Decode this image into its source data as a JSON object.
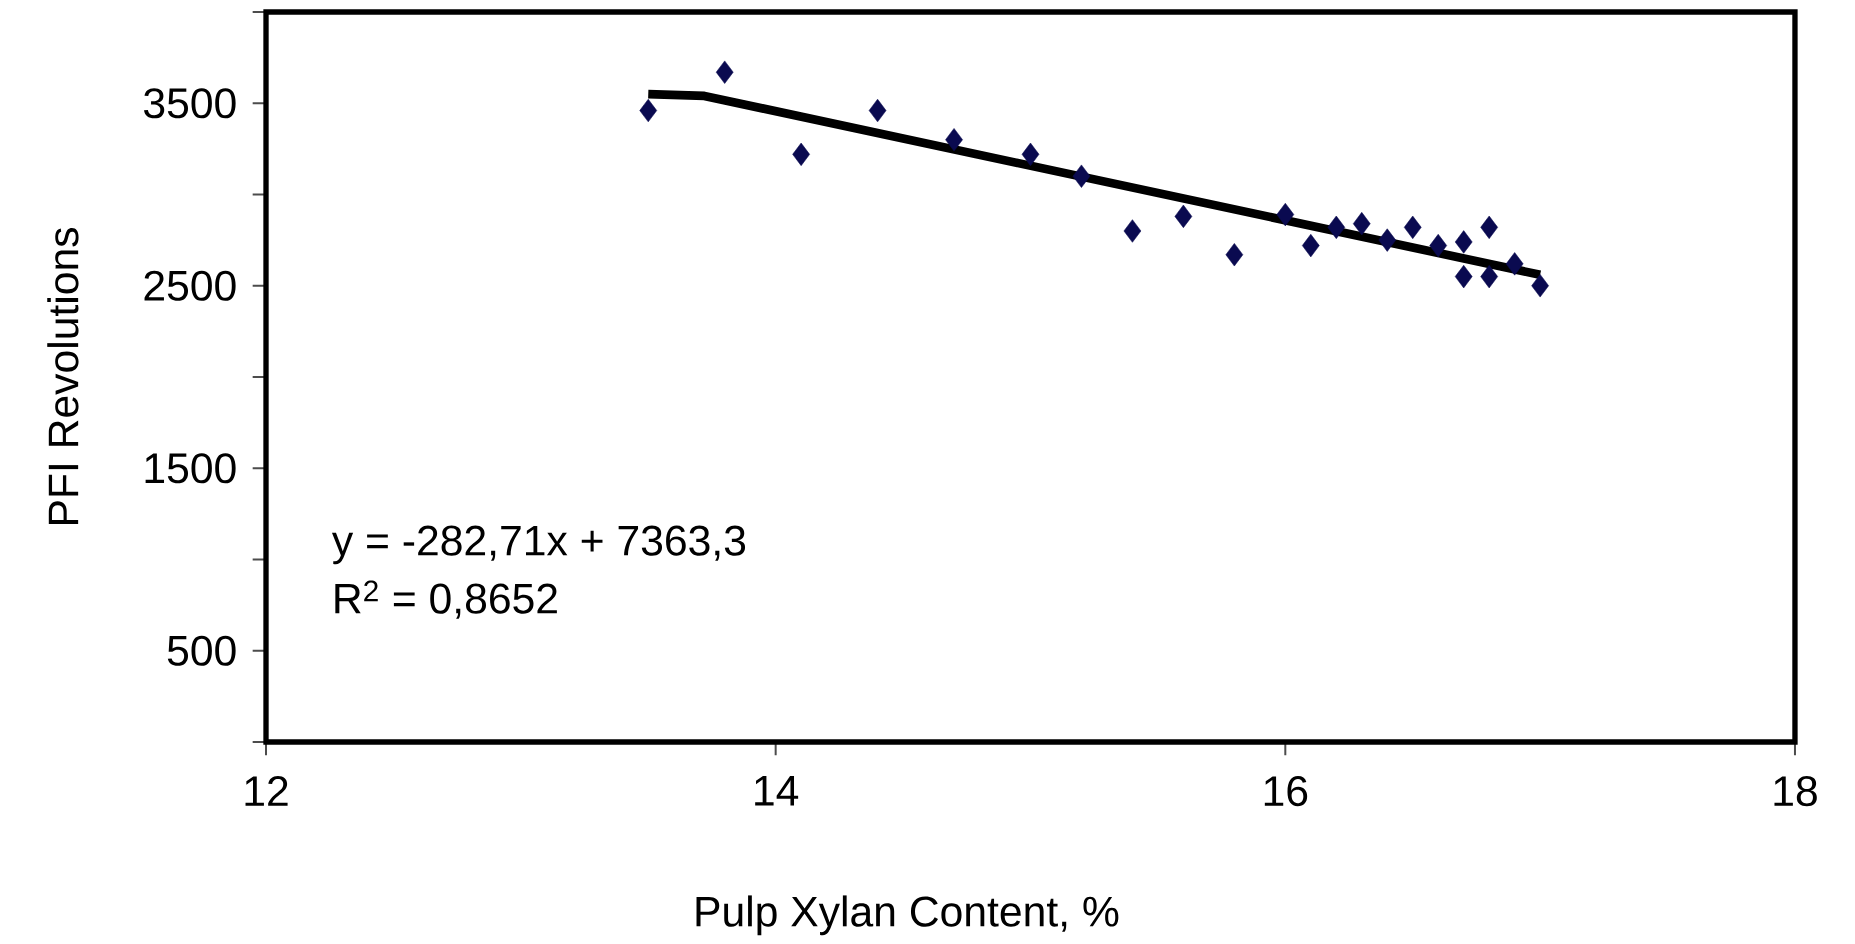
{
  "chart_data": {
    "type": "scatter",
    "xlabel": "Pulp Xylan  Content, %",
    "ylabel": "PFI Revolutions",
    "xlim": [
      12,
      18
    ],
    "xticks": [
      12,
      14,
      16,
      18
    ],
    "ylim": [
      0,
      4000
    ],
    "yticks": [
      {
        "value": 0,
        "label": null
      },
      500,
      {
        "value": 1000,
        "label": null
      },
      1500,
      {
        "value": 2000,
        "label": null
      },
      2500,
      {
        "value": 3000,
        "label": null
      },
      3500,
      {
        "value": 4000,
        "label": null
      }
    ],
    "grid": false,
    "marker": "diamond",
    "series": [
      {
        "color": "#0a0a50",
        "x": [
          13.5,
          13.8,
          14.1,
          14.4,
          14.7,
          15.0,
          15.2,
          15.4,
          15.6,
          15.8,
          16.0,
          16.1,
          16.2,
          16.3,
          16.4,
          16.5,
          16.6,
          16.7,
          16.7,
          16.8,
          16.8,
          16.9,
          17.0
        ],
        "values": [
          3460,
          3670,
          3220,
          3460,
          3300,
          3220,
          3100,
          2800,
          2880,
          2670,
          2890,
          2720,
          2820,
          2840,
          2750,
          2820,
          2720,
          2740,
          2550,
          2820,
          2550,
          2620,
          2500
        ]
      },
      {
        "type": "line",
        "color": "#000000",
        "marker": "none",
        "x": [
          13.5,
          13.72,
          17.0
        ],
        "values": [
          3550,
          3540,
          2560
        ]
      }
    ],
    "annotations": [
      "y = -282,71x + 7363,3",
      "R$^{2}$ = 0,8652"
    ]
  }
}
